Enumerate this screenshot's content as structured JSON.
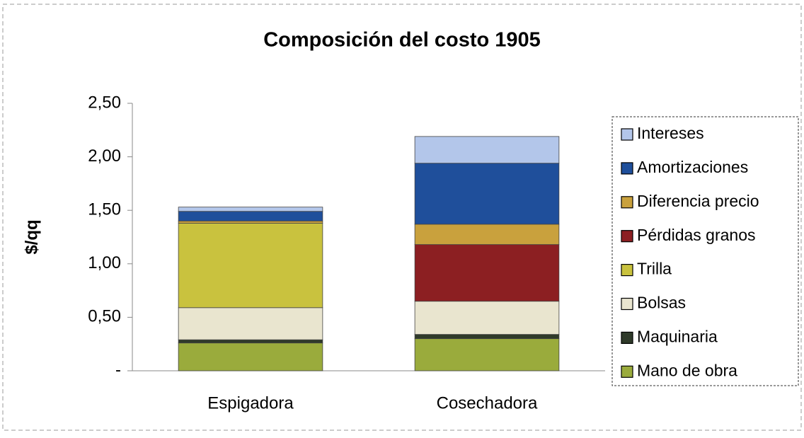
{
  "chart_data": {
    "type": "stacked_bar",
    "title": "Composición del costo 1905",
    "y_label": "$/qq",
    "categories": [
      "Espigadora",
      "Cosechadora"
    ],
    "series": [
      {
        "name": "Mano de obra",
        "color": "#9aab3c",
        "values": [
          0.26,
          0.3
        ]
      },
      {
        "name": "Maquinaria",
        "color": "#2f3a2a",
        "values": [
          0.03,
          0.04
        ]
      },
      {
        "name": "Bolsas",
        "color": "#e9e5cf",
        "values": [
          0.3,
          0.31
        ]
      },
      {
        "name": "Trilla",
        "color": "#c9c23e",
        "values": [
          0.79,
          0
        ]
      },
      {
        "name": "Pérdidas granos",
        "color": "#8c1f22",
        "values": [
          0,
          0.53
        ]
      },
      {
        "name": "Diferencia precio",
        "color": "#c9a13d",
        "values": [
          0.02,
          0.19
        ]
      },
      {
        "name": "Amortizaciones",
        "color": "#1f4f9b",
        "values": [
          0.09,
          0.57
        ]
      },
      {
        "name": "Intereses",
        "color": "#b3c6ea",
        "values": [
          0.04,
          0.25
        ]
      }
    ],
    "ylim": [
      0,
      2.5
    ],
    "yticks": [
      {
        "value": 0,
        "label": "-"
      },
      {
        "value": 0.5,
        "label": "0,50"
      },
      {
        "value": 1,
        "label": "1,00"
      },
      {
        "value": 1.5,
        "label": "1,50"
      },
      {
        "value": 2,
        "label": "2,00"
      },
      {
        "value": 2.5,
        "label": "2,50"
      }
    ],
    "legend": "right"
  }
}
